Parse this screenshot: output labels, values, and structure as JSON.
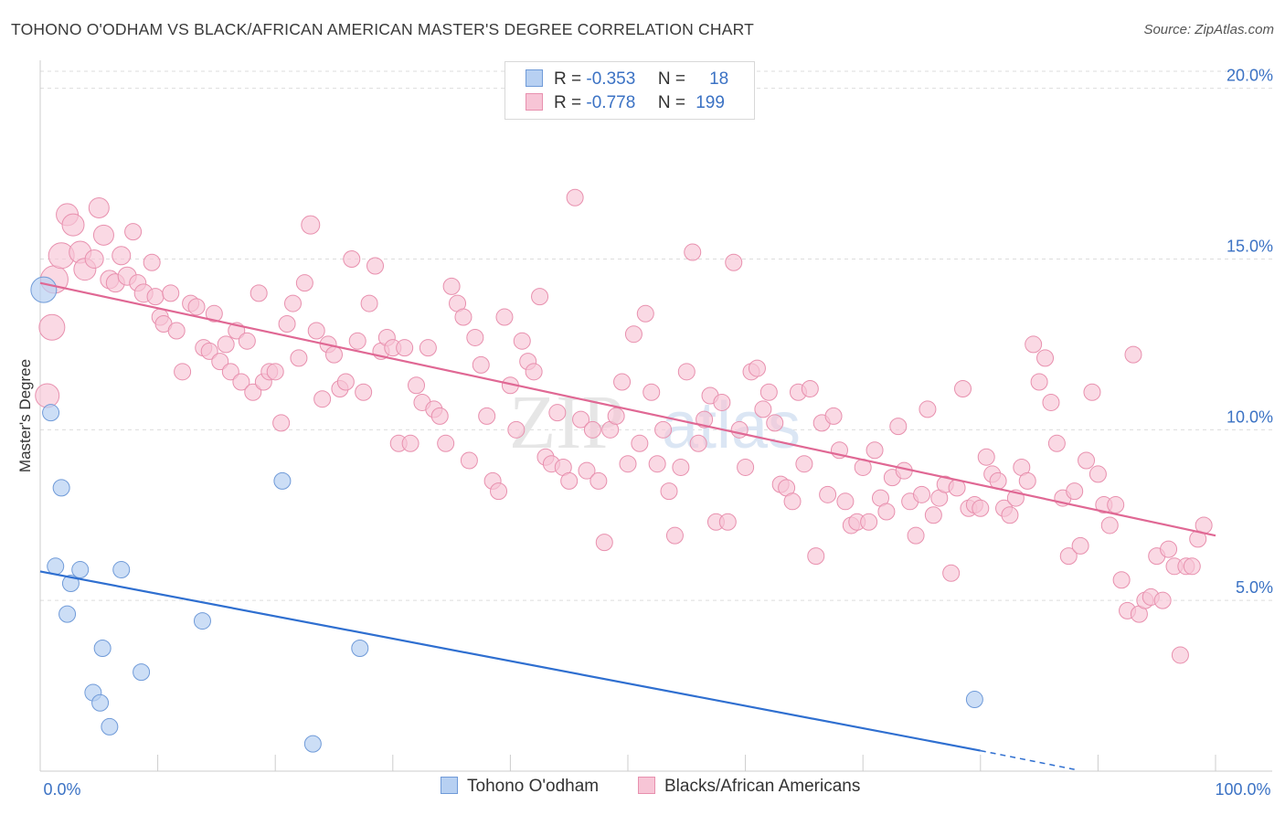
{
  "header": {
    "title": "TOHONO O'ODHAM VS BLACK/AFRICAN AMERICAN MASTER'S DEGREE CORRELATION CHART",
    "source": "Source: ZipAtlas.com"
  },
  "legend": {
    "rows": [
      {
        "r_label": "R =",
        "r_value": "-0.353",
        "n_label": "N =",
        "n_value": "18"
      },
      {
        "r_label": "R =",
        "r_value": "-0.778",
        "n_label": "N =",
        "n_value": "199"
      }
    ]
  },
  "colors": {
    "blue_fill": "#b7d0f2",
    "blue_stroke": "#6f9ad8",
    "blue_line": "#2f6fd0",
    "pink_fill": "#f7c5d6",
    "pink_stroke": "#e890ae",
    "pink_line": "#e06894",
    "axis_label": "#3b72c4",
    "grid": "#dddddd"
  },
  "watermark": {
    "zip": "ZIP",
    "atlas": "atlas"
  },
  "chart_data": {
    "type": "scatter",
    "title": "TOHONO O'ODHAM VS BLACK/AFRICAN AMERICAN MASTER'S DEGREE CORRELATION CHART",
    "xlabel": "",
    "ylabel": "Master's Degree",
    "xlim": [
      0,
      100
    ],
    "ylim": [
      0,
      20.5
    ],
    "x_ticks": [
      "0.0%",
      "100.0%"
    ],
    "y_ticks": [
      {
        "value": 5,
        "label": "5.0%"
      },
      {
        "value": 10,
        "label": "10.0%"
      },
      {
        "value": 15,
        "label": "15.0%"
      },
      {
        "value": 20,
        "label": "20.0%"
      }
    ],
    "grid": "horizontal dashed",
    "legend_position": "top-center",
    "series": [
      {
        "name": "Tohono O'odham",
        "r": -0.353,
        "n": 18,
        "trend": {
          "x0": 0,
          "y0": 5.85,
          "x1": 80,
          "y1": 0.6,
          "dashed_to_x": 88,
          "dashed_to_y": 0.05
        },
        "points": [
          [
            0.3,
            14.1,
            14
          ],
          [
            0.9,
            10.5,
            9
          ],
          [
            1.8,
            8.3,
            9
          ],
          [
            1.3,
            6.0,
            9
          ],
          [
            2.6,
            5.5,
            9
          ],
          [
            3.4,
            5.9,
            9
          ],
          [
            2.3,
            4.6,
            9
          ],
          [
            5.3,
            3.6,
            9
          ],
          [
            4.5,
            2.3,
            9
          ],
          [
            5.1,
            2.0,
            9
          ],
          [
            5.9,
            1.3,
            9
          ],
          [
            6.9,
            5.9,
            9
          ],
          [
            8.6,
            2.9,
            9
          ],
          [
            13.8,
            4.4,
            9
          ],
          [
            20.6,
            8.5,
            9
          ],
          [
            23.2,
            0.8,
            9
          ],
          [
            27.2,
            3.6,
            9
          ],
          [
            79.5,
            2.1,
            9
          ]
        ]
      },
      {
        "name": "Blacks/African Americans",
        "r": -0.778,
        "n": 199,
        "trend": {
          "x0": 0,
          "y0": 14.3,
          "x1": 100,
          "y1": 6.9
        },
        "points": [
          [
            0.6,
            11.0,
            13
          ],
          [
            1.0,
            13.0,
            14
          ],
          [
            1.2,
            14.4,
            15
          ],
          [
            1.8,
            15.1,
            14
          ],
          [
            2.3,
            16.3,
            12
          ],
          [
            2.8,
            16.0,
            12
          ],
          [
            3.4,
            15.2,
            12
          ],
          [
            3.8,
            14.7,
            12
          ],
          [
            4.6,
            15.0,
            10
          ],
          [
            5.0,
            16.5,
            11
          ],
          [
            5.4,
            15.7,
            11
          ],
          [
            5.9,
            14.4,
            10
          ],
          [
            6.4,
            14.3,
            10
          ],
          [
            6.9,
            15.1,
            10
          ],
          [
            7.4,
            14.5,
            10
          ],
          [
            7.9,
            15.8,
            9
          ],
          [
            8.3,
            14.3,
            9
          ],
          [
            8.8,
            14.0,
            10
          ],
          [
            9.5,
            14.9,
            9
          ],
          [
            9.8,
            13.9,
            9
          ],
          [
            10.2,
            13.3,
            9
          ],
          [
            10.5,
            13.1,
            9
          ],
          [
            11.1,
            14.0,
            9
          ],
          [
            11.6,
            12.9,
            9
          ],
          [
            12.1,
            11.7,
            9
          ],
          [
            12.8,
            13.7,
            9
          ],
          [
            13.3,
            13.6,
            9
          ],
          [
            13.9,
            12.4,
            9
          ],
          [
            14.4,
            12.3,
            9
          ],
          [
            14.8,
            13.4,
            9
          ],
          [
            15.3,
            12.0,
            9
          ],
          [
            15.8,
            12.5,
            9
          ],
          [
            16.2,
            11.7,
            9
          ],
          [
            16.7,
            12.9,
            9
          ],
          [
            17.1,
            11.4,
            9
          ],
          [
            17.6,
            12.6,
            9
          ],
          [
            18.1,
            11.1,
            9
          ],
          [
            18.6,
            14.0,
            9
          ],
          [
            19.0,
            11.4,
            9
          ],
          [
            19.5,
            11.7,
            9
          ],
          [
            20.0,
            11.7,
            9
          ],
          [
            20.5,
            10.2,
            9
          ],
          [
            21.0,
            13.1,
            9
          ],
          [
            21.5,
            13.7,
            9
          ],
          [
            22.0,
            12.1,
            9
          ],
          [
            22.5,
            14.3,
            9
          ],
          [
            23.0,
            16.0,
            10
          ],
          [
            23.5,
            12.9,
            9
          ],
          [
            24.0,
            10.9,
            9
          ],
          [
            24.5,
            12.5,
            9
          ],
          [
            25.0,
            12.2,
            9
          ],
          [
            25.5,
            11.2,
            9
          ],
          [
            26.0,
            11.4,
            9
          ],
          [
            26.5,
            15.0,
            9
          ],
          [
            27.0,
            12.6,
            9
          ],
          [
            27.5,
            11.1,
            9
          ],
          [
            28.0,
            13.7,
            9
          ],
          [
            28.5,
            14.8,
            9
          ],
          [
            29.0,
            12.3,
            9
          ],
          [
            29.5,
            12.7,
            9
          ],
          [
            30.0,
            12.4,
            9
          ],
          [
            30.5,
            9.6,
            9
          ],
          [
            31.0,
            12.4,
            9
          ],
          [
            31.5,
            9.6,
            9
          ],
          [
            32.0,
            11.3,
            9
          ],
          [
            32.5,
            10.8,
            9
          ],
          [
            33.0,
            12.4,
            9
          ],
          [
            33.5,
            10.6,
            9
          ],
          [
            34.0,
            10.4,
            9
          ],
          [
            34.5,
            9.6,
            9
          ],
          [
            35.0,
            14.2,
            9
          ],
          [
            35.5,
            13.7,
            9
          ],
          [
            36.0,
            13.3,
            9
          ],
          [
            36.5,
            9.1,
            9
          ],
          [
            37.0,
            12.7,
            9
          ],
          [
            37.5,
            11.9,
            9
          ],
          [
            38.0,
            10.4,
            9
          ],
          [
            38.5,
            8.5,
            9
          ],
          [
            39.0,
            8.2,
            9
          ],
          [
            39.5,
            13.3,
            9
          ],
          [
            40.0,
            11.3,
            9
          ],
          [
            40.5,
            10.0,
            9
          ],
          [
            41.0,
            12.6,
            9
          ],
          [
            41.5,
            12.0,
            9
          ],
          [
            42.0,
            11.7,
            9
          ],
          [
            42.5,
            13.9,
            9
          ],
          [
            43.0,
            9.2,
            9
          ],
          [
            43.5,
            9.0,
            9
          ],
          [
            44.0,
            10.5,
            9
          ],
          [
            44.5,
            8.9,
            9
          ],
          [
            45.0,
            8.5,
            9
          ],
          [
            45.5,
            16.8,
            9
          ],
          [
            46.0,
            10.3,
            9
          ],
          [
            46.5,
            8.8,
            9
          ],
          [
            47.0,
            10.0,
            9
          ],
          [
            47.5,
            8.5,
            9
          ],
          [
            48.0,
            6.7,
            9
          ],
          [
            48.5,
            10.0,
            9
          ],
          [
            49.0,
            10.4,
            9
          ],
          [
            49.5,
            11.4,
            9
          ],
          [
            50.0,
            9.0,
            9
          ],
          [
            50.5,
            12.8,
            9
          ],
          [
            51.0,
            9.6,
            9
          ],
          [
            51.5,
            13.4,
            9
          ],
          [
            52.0,
            11.1,
            9
          ],
          [
            52.5,
            9.0,
            9
          ],
          [
            53.0,
            10.0,
            9
          ],
          [
            53.5,
            8.2,
            9
          ],
          [
            54.0,
            6.9,
            9
          ],
          [
            54.5,
            8.9,
            9
          ],
          [
            55.0,
            11.7,
            9
          ],
          [
            55.5,
            15.2,
            9
          ],
          [
            56.0,
            9.6,
            9
          ],
          [
            56.5,
            10.3,
            9
          ],
          [
            57.0,
            11.0,
            9
          ],
          [
            57.5,
            7.3,
            9
          ],
          [
            58.0,
            10.8,
            9
          ],
          [
            58.5,
            7.3,
            9
          ],
          [
            59.0,
            14.9,
            9
          ],
          [
            59.5,
            10.0,
            9
          ],
          [
            60.0,
            8.9,
            9
          ],
          [
            60.5,
            11.7,
            9
          ],
          [
            61.0,
            11.8,
            9
          ],
          [
            61.5,
            10.6,
            9
          ],
          [
            62.0,
            11.1,
            9
          ],
          [
            62.5,
            10.2,
            9
          ],
          [
            63.0,
            8.4,
            9
          ],
          [
            63.5,
            8.3,
            9
          ],
          [
            64.0,
            7.9,
            9
          ],
          [
            64.5,
            11.1,
            9
          ],
          [
            65.0,
            9.0,
            9
          ],
          [
            65.5,
            11.2,
            9
          ],
          [
            66.0,
            6.3,
            9
          ],
          [
            66.5,
            10.2,
            9
          ],
          [
            67.0,
            8.1,
            9
          ],
          [
            67.5,
            10.4,
            9
          ],
          [
            68.0,
            9.4,
            9
          ],
          [
            68.5,
            7.9,
            9
          ],
          [
            69.0,
            7.2,
            9
          ],
          [
            69.5,
            7.3,
            9
          ],
          [
            70.0,
            8.9,
            9
          ],
          [
            70.5,
            7.3,
            9
          ],
          [
            71.0,
            9.4,
            9
          ],
          [
            71.5,
            8.0,
            9
          ],
          [
            72.0,
            7.6,
            9
          ],
          [
            72.5,
            8.6,
            9
          ],
          [
            73.0,
            10.1,
            9
          ],
          [
            73.5,
            8.8,
            9
          ],
          [
            74.0,
            7.9,
            9
          ],
          [
            74.5,
            6.9,
            9
          ],
          [
            75.0,
            8.1,
            9
          ],
          [
            75.5,
            10.6,
            9
          ],
          [
            76.0,
            7.5,
            9
          ],
          [
            76.5,
            8.0,
            9
          ],
          [
            77.0,
            8.4,
            9
          ],
          [
            77.5,
            5.8,
            9
          ],
          [
            78.0,
            8.3,
            9
          ],
          [
            78.5,
            11.2,
            9
          ],
          [
            79.0,
            7.7,
            9
          ],
          [
            79.5,
            7.8,
            9
          ],
          [
            80.0,
            7.7,
            9
          ],
          [
            80.5,
            9.2,
            9
          ],
          [
            81.0,
            8.7,
            9
          ],
          [
            81.5,
            8.5,
            9
          ],
          [
            82.0,
            7.7,
            9
          ],
          [
            82.5,
            7.5,
            9
          ],
          [
            83.0,
            8.0,
            9
          ],
          [
            83.5,
            8.9,
            9
          ],
          [
            84.0,
            8.5,
            9
          ],
          [
            84.5,
            12.5,
            9
          ],
          [
            85.0,
            11.4,
            9
          ],
          [
            85.5,
            12.1,
            9
          ],
          [
            86.0,
            10.8,
            9
          ],
          [
            86.5,
            9.6,
            9
          ],
          [
            87.0,
            8.0,
            9
          ],
          [
            87.5,
            6.3,
            9
          ],
          [
            88.0,
            8.2,
            9
          ],
          [
            88.5,
            6.6,
            9
          ],
          [
            89.0,
            9.1,
            9
          ],
          [
            89.5,
            11.1,
            9
          ],
          [
            90.0,
            8.7,
            9
          ],
          [
            90.5,
            7.8,
            9
          ],
          [
            91.0,
            7.2,
            9
          ],
          [
            91.5,
            7.8,
            9
          ],
          [
            92.0,
            5.6,
            9
          ],
          [
            92.5,
            4.7,
            9
          ],
          [
            93.0,
            12.2,
            9
          ],
          [
            93.5,
            4.6,
            9
          ],
          [
            94.0,
            5.0,
            9
          ],
          [
            94.5,
            5.1,
            9
          ],
          [
            95.0,
            6.3,
            9
          ],
          [
            95.5,
            5.0,
            9
          ],
          [
            96.0,
            6.5,
            9
          ],
          [
            96.5,
            6.0,
            9
          ],
          [
            97.0,
            3.4,
            9
          ],
          [
            97.5,
            6.0,
            9
          ],
          [
            98.0,
            6.0,
            9
          ],
          [
            98.5,
            6.8,
            9
          ],
          [
            99.0,
            7.2,
            9
          ]
        ]
      }
    ]
  },
  "bottom_legend": {
    "items": [
      {
        "label": "Tohono O'odham"
      },
      {
        "label": "Blacks/African Americans"
      }
    ]
  }
}
